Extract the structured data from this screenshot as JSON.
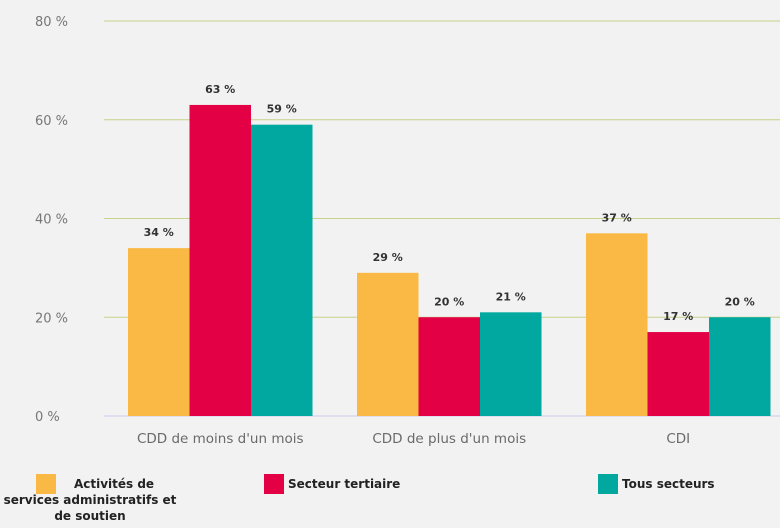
{
  "chart_data": {
    "type": "bar",
    "categories": [
      "CDD de moins d'un mois",
      "CDD de plus d'un mois",
      "CDI"
    ],
    "series": [
      {
        "name": "Activités de services administratifs et de soutien",
        "values": [
          34,
          29,
          37
        ],
        "labels": [
          "34 %",
          "29 %",
          "37 %"
        ],
        "color": "#f9b944"
      },
      {
        "name": "Secteur tertiaire",
        "values": [
          63,
          20,
          17
        ],
        "labels": [
          "63 %",
          "20 %",
          "17 %"
        ],
        "color": "#e30045"
      },
      {
        "name": "Tous secteurs",
        "values": [
          59,
          21,
          20
        ],
        "labels": [
          "59 %",
          "21 %",
          "20 %"
        ],
        "color": "#00a8a0"
      }
    ],
    "yticks": [
      "0 %",
      "20 %",
      "40 %",
      "60 %",
      "80 %"
    ],
    "ylim": [
      0,
      80
    ],
    "grid": true,
    "legend_position": "bottom"
  }
}
